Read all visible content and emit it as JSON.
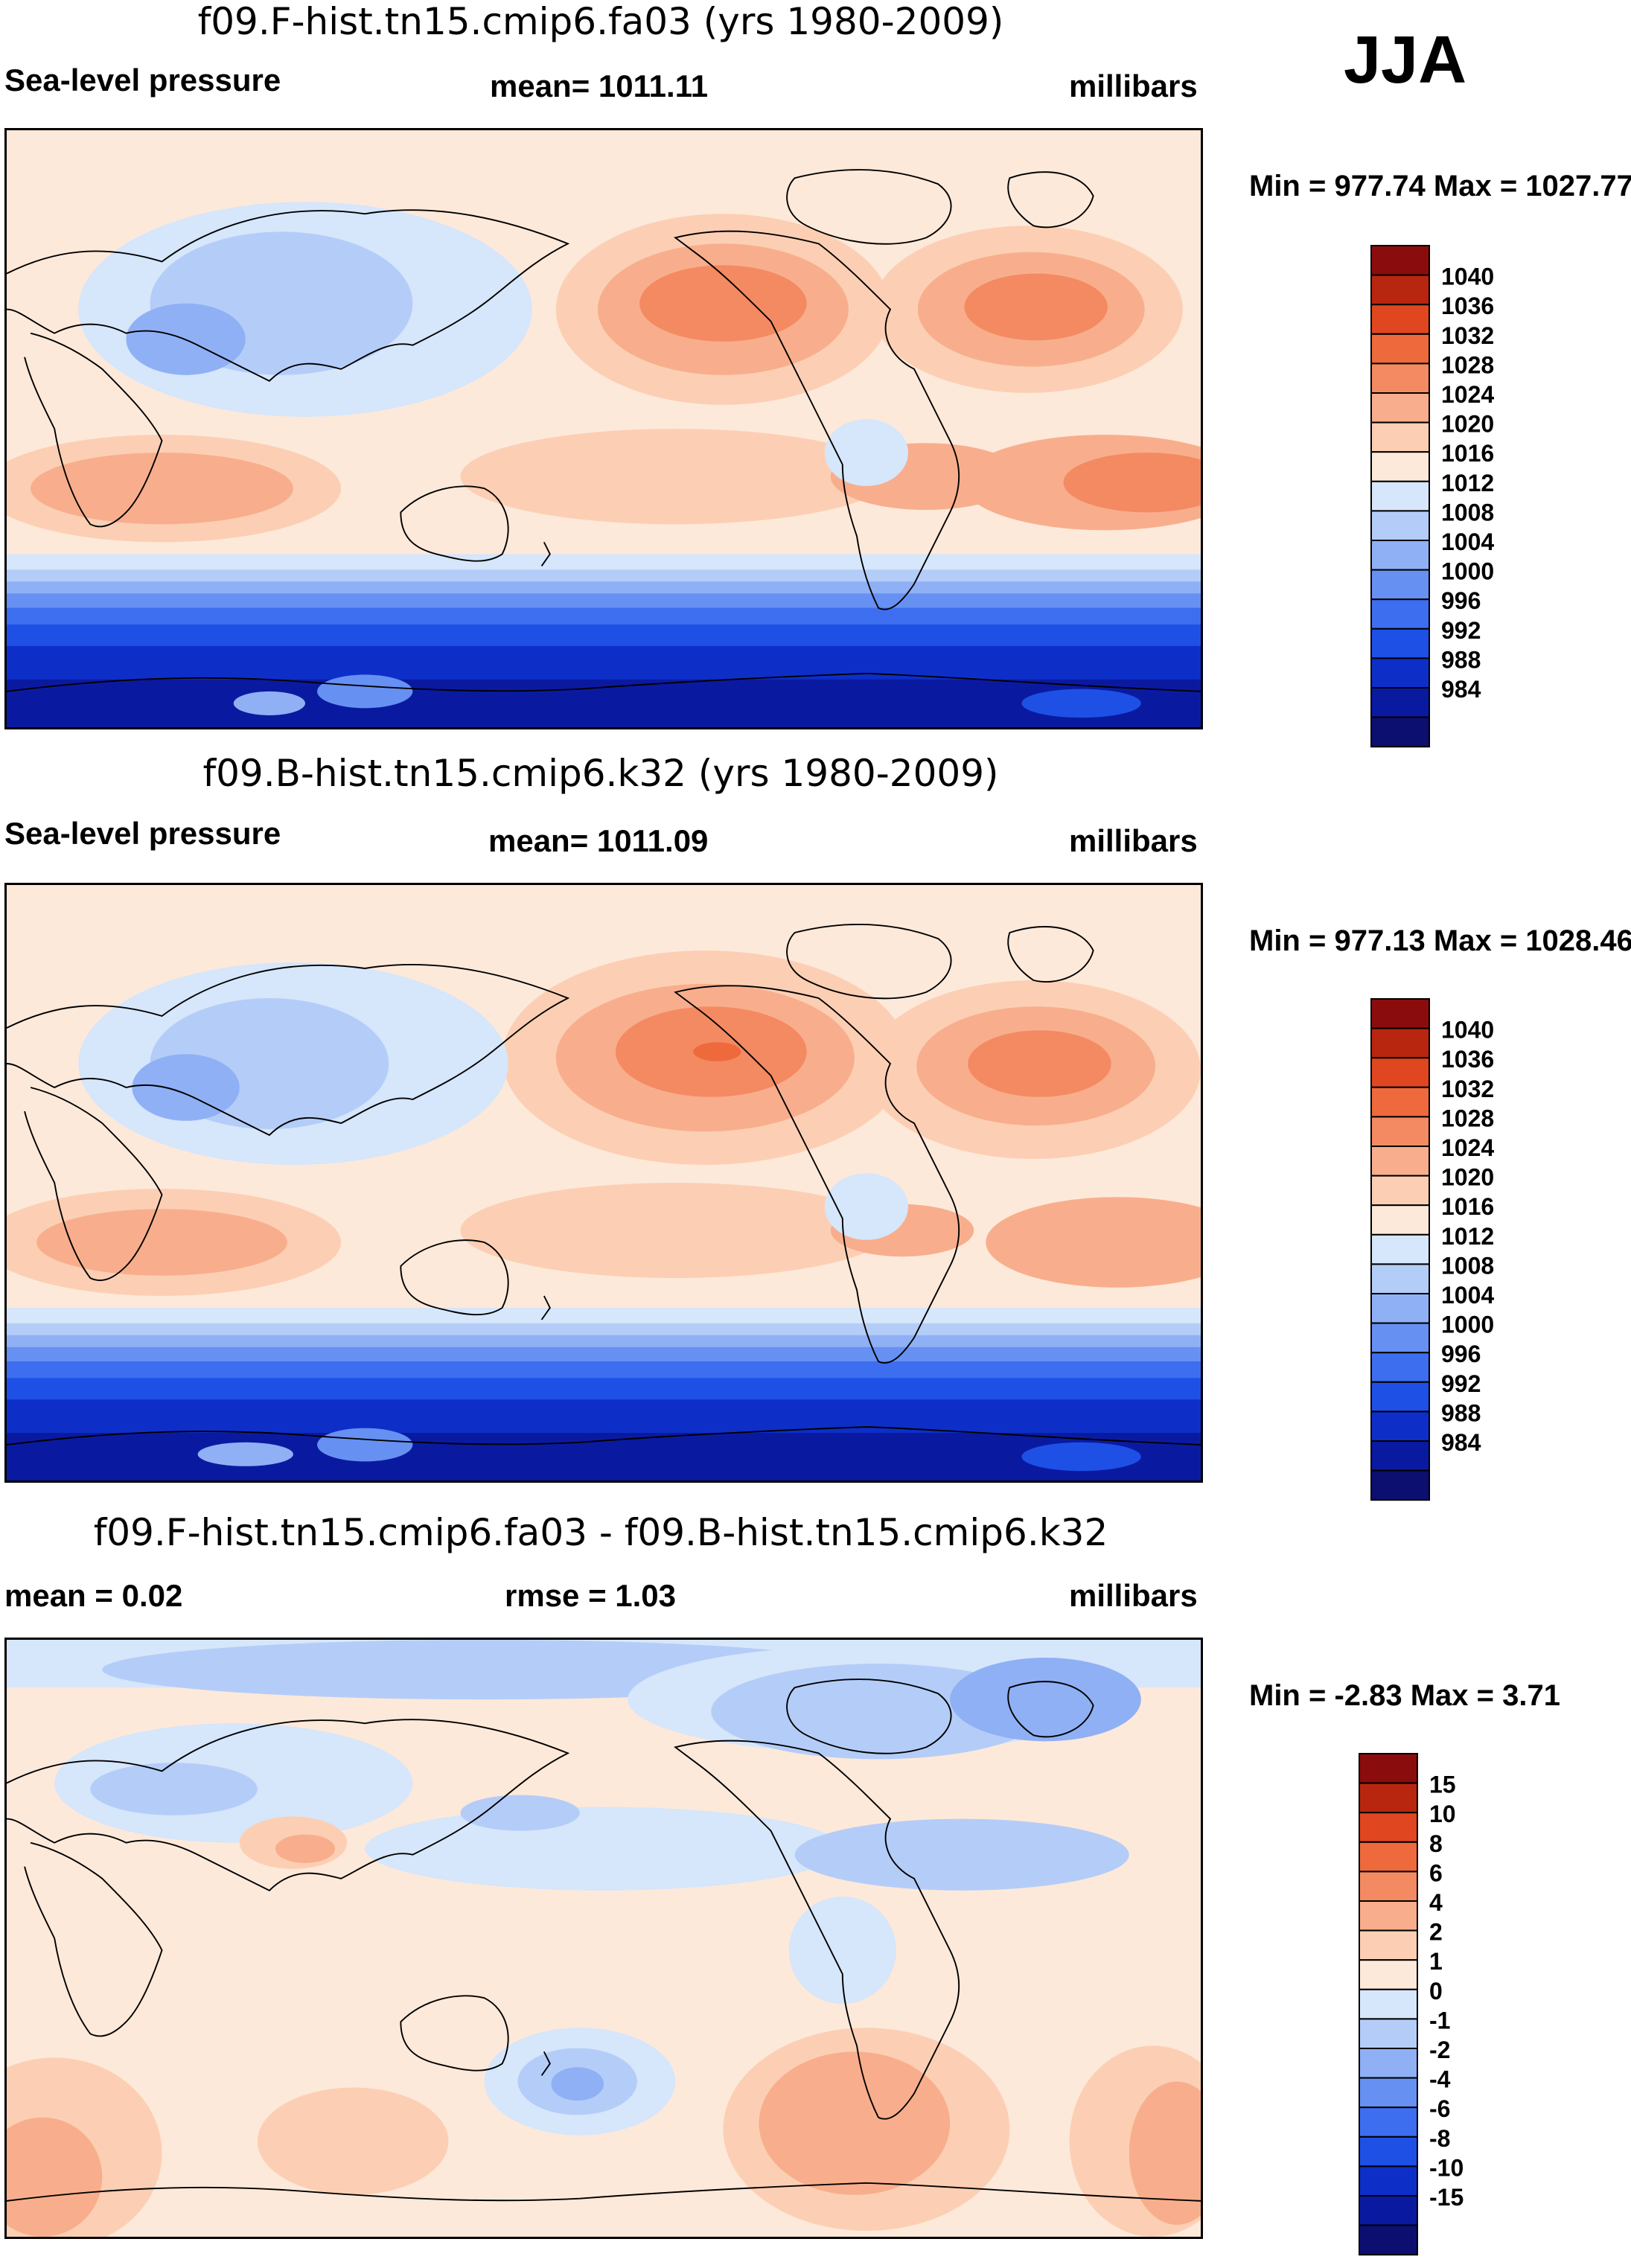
{
  "season": "JJA",
  "palettes": {
    "abs": [
      "#0c0f70",
      "#0a1aa0",
      "#0d2fc8",
      "#1e50e6",
      "#3d6ef0",
      "#6690f2",
      "#8fb0f5",
      "#b4cdf8",
      "#d6e6fb",
      "#fde9da",
      "#fccfb4",
      "#f8ae8c",
      "#f48a62",
      "#ee6a3c",
      "#e0461f",
      "#b8260f",
      "#8b0c0c"
    ],
    "diff": [
      "#0c0f70",
      "#0a1aa0",
      "#0d2fc8",
      "#1e50e6",
      "#3d6ef0",
      "#6690f2",
      "#8fb0f5",
      "#b4cdf8",
      "#d6e6fb",
      "#fde9da",
      "#fccfb4",
      "#f8ae8c",
      "#f48a62",
      "#ee6a3c",
      "#e0461f",
      "#b8260f",
      "#8b0c0c"
    ]
  },
  "panels": [
    {
      "title": "f09.F-hist.tn15.cmip6.fa03 (yrs 1980-2009)",
      "left": "Sea-level pressure",
      "center": "mean= 1011.11",
      "right": "millibars",
      "minmax": "Min = 977.74 Max = 1027.77",
      "colorbar_labels": [
        "1040",
        "1036",
        "1032",
        "1028",
        "1024",
        "1020",
        "1016",
        "1012",
        "1008",
        "1004",
        "1000",
        "996",
        "992",
        "988",
        "984"
      ]
    },
    {
      "title": "f09.B-hist.tn15.cmip6.k32 (yrs 1980-2009)",
      "left": "Sea-level pressure",
      "center": "mean= 1011.09",
      "right": "millibars",
      "minmax": "Min = 977.13 Max = 1028.46",
      "colorbar_labels": [
        "1040",
        "1036",
        "1032",
        "1028",
        "1024",
        "1020",
        "1016",
        "1012",
        "1008",
        "1004",
        "1000",
        "996",
        "992",
        "988",
        "984"
      ]
    },
    {
      "title": "f09.F-hist.tn15.cmip6.fa03 - f09.B-hist.tn15.cmip6.k32",
      "left": "mean =   0.02",
      "center": "rmse =   1.03",
      "right": "millibars",
      "minmax": "Min =  -2.83 Max =   3.71",
      "colorbar_labels": [
        "15",
        "10",
        "8",
        "6",
        "4",
        "2",
        "1",
        "0",
        "-1",
        "-2",
        "-4",
        "-6",
        "-8",
        "-10",
        "-15"
      ]
    }
  ]
}
